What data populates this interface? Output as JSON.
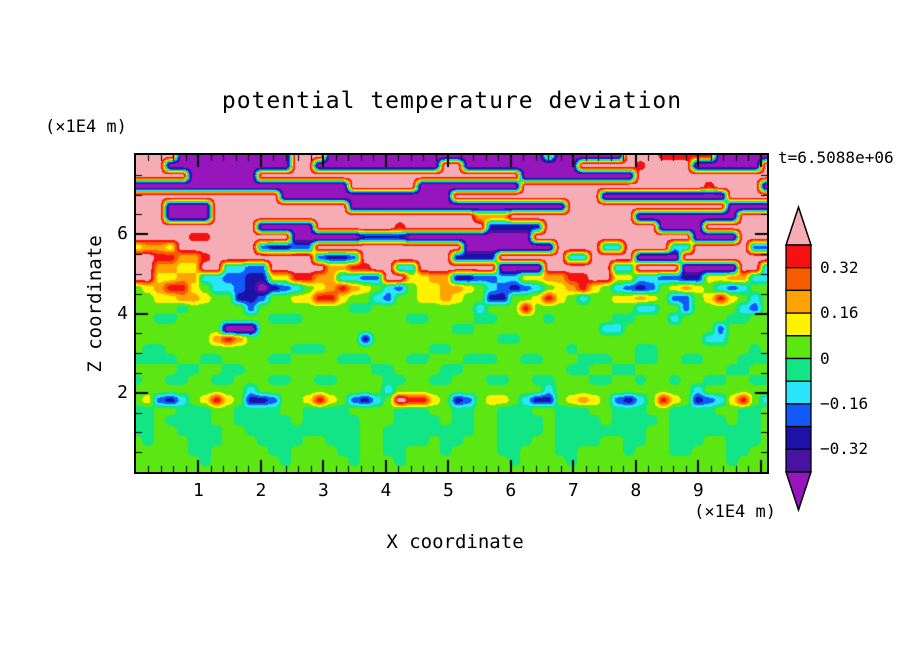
{
  "title": "potential temperature deviation",
  "time_label": "t=6.5088e+06",
  "axes": {
    "x": {
      "label": "X coordinate",
      "units": "(×1E4 m)",
      "min": 0,
      "max": 10.1,
      "tick_values": [
        1,
        2,
        3,
        4,
        5,
        6,
        7,
        8,
        9
      ],
      "tick_labels": [
        "1",
        "2",
        "3",
        "4",
        "5",
        "6",
        "7",
        "8",
        "9"
      ],
      "minor_step": 0.2,
      "major_step": 1
    },
    "z": {
      "label": "Z coordinate",
      "units": "(×1E4 m)",
      "min": 0,
      "max": 8,
      "tick_values": [
        6,
        4,
        2
      ],
      "tick_labels": [
        "6",
        "4",
        "2"
      ],
      "minor_step": 0.5,
      "major_step": 2
    }
  },
  "colorbar": {
    "labels": [
      "0.32",
      "0.16",
      "0",
      "−0.16",
      "−0.32"
    ],
    "label_values": [
      0.32,
      0.16,
      0,
      -0.16,
      -0.32
    ],
    "segment_boundaries": [
      0.4,
      0.32,
      0.24,
      0.16,
      0.08,
      0,
      -0.08,
      -0.16,
      -0.24,
      -0.32,
      -0.4
    ],
    "over_color": "#F6ACB4",
    "under_color": "#9715BC"
  },
  "chart_data": {
    "type": "heatmap",
    "title": "potential temperature deviation",
    "xlabel": "X coordinate (×1E4 m)",
    "ylabel": "Z coordinate (×1E4 m)",
    "x_range": [
      0,
      10.1
    ],
    "z_range": [
      0,
      8
    ],
    "contour_interval": 0.08,
    "levels_desc": [
      0.4,
      0.32,
      0.24,
      0.16,
      0.08,
      0,
      -0.08,
      -0.16,
      -0.24,
      -0.32,
      -0.4
    ],
    "colors_desc": [
      "#F6ACB4",
      "#F51111",
      "#F85C00",
      "#FFA300",
      "#FFF200",
      "#5CE612",
      "#12E586",
      "#28E5F8",
      "#1159F8",
      "#1D12A8",
      "#4812A2",
      "#9715BC"
    ],
    "char_values": {
      "P": 0.46,
      "R": 0.36,
      "V": 0.28,
      "O": 0.2,
      "Y": 0.12,
      "G": 0.04,
      "S": -0.04,
      "C": -0.12,
      "B": -0.2,
      "N": -0.28,
      "I": -0.36,
      "U": -0.47
    },
    "field_description": "Stratified shear-layer field: z>5.3 pink (>0.4) background with elongated deep-purple (<-0.4) wave-breaking bands; turbulent rainbow band (red/orange/yellow/cyan/blue/navy) near z=4.3-5.3; chartreuse/spring-green striped layer z=2-4.2 with small purple and navy spots; sharp speckled interface line at z=2; smooth convective chartreuse/spring-green mushroom cells below z=2.",
    "grid_rows": [
      [
        "PPPPUUUU",
        "UUUUUUPP",
        "PUUUUUUU",
        "UUUUUUUU",
        "UUUUGUUU",
        "UUUPPPRR",
        "RRRUUUUU"
      ],
      [
        "PPPUUUUU",
        "UUUUUUPP",
        "UUUUUUUU",
        "UUUPPUUU",
        "UUUUUUUP",
        "PPPPRPPP",
        "PUUUUUUP"
      ],
      [
        "PPPPPUUU",
        "UUUPPPPP",
        "PPPPPPPP",
        "PPPPPPPP",
        "PPUUUUUU",
        "UUUUPPPP",
        "PPPPPPPP"
      ],
      [
        "UUUUUUUU",
        "UUUUUUUU",
        "UUUPPPPP",
        "PUUUUUUU",
        "UUPPPPPP",
        "PPPPPPPP",
        "PPRPPPPU"
      ],
      [
        "PPPPPPPP",
        "PPPPPUUU",
        "UUUUUUUU",
        "UUUUPPPP",
        "PPPPPPPP",
        "PUUUUUUU",
        "UUUUPPPP"
      ],
      [
        "PPPUUUUP",
        "PPPPPPPP",
        "PPPUUUUU",
        "UUUUUUUU",
        "UUUUUUPP",
        "PPPPPPPP",
        "PPPPUUUU"
      ],
      [
        "PPPUUUUP",
        "PPPPPPPP",
        "PPPPPPPP",
        "PPPPPPOO",
        "OPPPPPPP",
        "PPPPUUUU",
        "UUUUUPPP"
      ],
      [
        "PPPPPPPP",
        "PPPUUUUU",
        "PPPPPPPR",
        "PPPPPPPN",
        "NNNNPPPP",
        "PPPPPPUU",
        "UUPPPPPP"
      ],
      [
        "PPPPPRRP",
        "PPPPPPUU",
        "UUUUNNNN",
        "UUUUUUUU",
        "UUUPPPPP",
        "PPPPPPPP",
        "PUUUUPPP"
      ],
      [
        "YOOYPPPP",
        "PPPBNNBB",
        "PPPPPPPP",
        "PPPPPUUU",
        "UUUUUPPP",
        "PCCPPPPC",
        "CPPPPPBB"
      ],
      [
        "PPRROORP",
        "PPPPPPPP",
        "BNNBPPPP",
        "PPPPNNNN",
        "PPPPPPCC",
        "PPPPUUUU",
        "PPPPPPPP"
      ],
      [
        "PPOOYYPP",
        "CCBBPPPP",
        "POORRPPC",
        "CPPPPPPP",
        "UUUUPPPP",
        "PPCCPPPP",
        "UUUUUPPC"
      ],
      [
        "PPYYOOCC",
        "BBNNYYRR",
        "OOCCBBPP",
        "YYOONNBB",
        "CCYYOORR",
        "PPYYCCBB",
        "NNYYOOCC"
      ],
      [
        "GYORRYGC",
        "CBNUNBCG",
        "YOROYGCB",
        "GYYOOYGC",
        "BNBCGYOR",
        "YGCBNBGY",
        "OYGCBCGG"
      ],
      [
        "GGYYOOYG",
        "GNNBGGYY",
        "RRYGGCBG",
        "GYYOYGGN",
        "NGGYRYGC",
        "GGYYOYGB",
        "BGYRYGCG"
      ],
      [
        "GGGGSGGG",
        "GGBGGGGG",
        "GGGSSGGG",
        "GGGGGGCG",
        "GGRGGGGG",
        "GGGGCCGG",
        "BGGGGCBG"
      ],
      [
        "GGSSGGGG",
        "GGGGSSSG",
        "GGGGGGGG",
        "SSGGGGSS",
        "GGGGSGGG",
        "GGSSGGGC",
        "GGGGSSGG"
      ],
      [
        "GGGGGGGG",
        "UUUGGGGG",
        "GGGGGGGG",
        "GGGGSSGG",
        "GGGGGGGG",
        "GCCGGGGG",
        "GGGBGGGG"
      ],
      [
        "GGGGGGGO",
        "ROGGGGGG",
        "GGGGNGGG",
        "GGGGGGGG",
        "SSGGGGGG",
        "GGGGGGGG",
        "GGCCGGGG"
      ],
      [
        "GSSGGGGG",
        "GGGGGGSS",
        "SGGGGGGG",
        "GGSSGGGG",
        "GGGGGGSG",
        "GGGGSSGG",
        "GGGGGGSG"
      ],
      [
        "SSSSGGSS",
        "GGGGSSGG",
        "GGSSSGGG",
        "SSGGGSSS",
        "GGSSGGGS",
        "SSGGSSGG",
        "SSGGGSSS"
      ],
      [
        "GGGGSSGG",
        "SSGGGGGG",
        "GGGGGSSG",
        "GGGSSGGG",
        "GGGGGGSS",
        "GGSSGGGG",
        "GGGGSSGG"
      ],
      [
        "SGGSSGGS",
        "SGGGSSGG",
        "SSGGGGSS",
        "GGSSGGGS",
        "SGGSSGGG",
        "SSGGSGGS",
        "GGSSGGSS"
      ],
      [
        "GGGGGGGG",
        "GGCGGGGG",
        "GGGGGGCG",
        "GGGGGGGG",
        "GGGGCGGG",
        "GGGGGGGG",
        "GCGGGGGG"
      ],
      [
        "GYBNCGYR",
        "YGNNBGGY",
        "RYGBNCGP",
        "RRYGNBGY",
        "YGCNNGYO",
        "YGBNCGRY",
        "GNBCYRGC"
      ],
      [
        "SSGGSSSG",
        "GSSSSGGS",
        "SSSGGGGS",
        "SSGGSSGG",
        "SSSGGSSS",
        "GGSSSGGS",
        "SSSGGSSG"
      ],
      [
        "SSGSSSSG",
        "GSSSSSGS",
        "SSSSGGGS",
        "SSSGSSGG",
        "SSSSGSSS",
        "SGSSSSGS",
        "SSSSGSSG"
      ],
      [
        "SSGGSSSS",
        "GGSSSSSS",
        "SSSSGGSS",
        "SSSSSSGG",
        "SSSSGSSS",
        "SSSSSGGS",
        "SSSSSSSG"
      ],
      [
        "GSGGGSSS",
        "GGGSSSSG",
        "GSSSGGSS",
        "SSGSSGGG",
        "SSSGGSSS",
        "SGGSSGGS",
        "SSGGSSSG"
      ],
      [
        "GGGGGSSG",
        "GGGGSSGG",
        "GGSSGGSS",
        "GGGSGGGG",
        "SSGGGSSG",
        "GGGSGGGS",
        "SGGGSSGG"
      ],
      [
        "GGGGGGSG",
        "GGGGGSGG",
        "GGGSGGGS",
        "GGGGGGGG",
        "GSGGGGSG",
        "GGGGGGGG",
        "GGGGSGGG"
      ],
      [
        "GGGGGGGG",
        "GGGGGGGG",
        "GGGGGGGG",
        "GGGGGGGG",
        "GGGGGGGG",
        "GGGGGGGG",
        "GGGGGGGG"
      ]
    ]
  }
}
